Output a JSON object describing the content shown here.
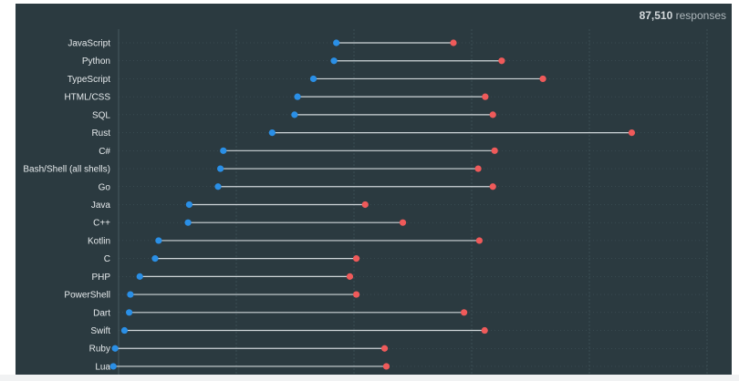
{
  "header": {
    "responses_count": "87,510",
    "responses_label": "responses"
  },
  "colors": {
    "background": "#2b3a40",
    "blue_dot": "#2a8fe6",
    "red_dot": "#ef5a5a",
    "connector": "#cfd6d9",
    "grid": "#475a61"
  },
  "chart_data": {
    "type": "dumbbell",
    "title": "",
    "xlabel": "",
    "ylabel": "",
    "xlim": [
      0,
      100
    ],
    "grid": true,
    "categories": [
      "JavaScript",
      "Python",
      "TypeScript",
      "HTML/CSS",
      "SQL",
      "Rust",
      "C#",
      "Bash/Shell (all shells)",
      "Go",
      "Java",
      "C++",
      "Kotlin",
      "C",
      "PHP",
      "PowerShell",
      "Dart",
      "Swift",
      "Ruby",
      "Lua"
    ],
    "series": [
      {
        "values": [
          37.0,
          36.6,
          33.1,
          30.4,
          29.9,
          26.1,
          17.8,
          17.3,
          16.9,
          12.0,
          11.8,
          6.8,
          6.2,
          3.6,
          2.0,
          1.8,
          1.0,
          -0.6,
          -0.9
        ]
      },
      {
        "values": [
          56.9,
          65.1,
          72.1,
          62.3,
          63.6,
          87.2,
          63.9,
          61.1,
          63.6,
          41.9,
          48.3,
          61.3,
          40.4,
          39.3,
          40.4,
          58.7,
          62.2,
          45.2,
          45.5
        ]
      }
    ]
  }
}
